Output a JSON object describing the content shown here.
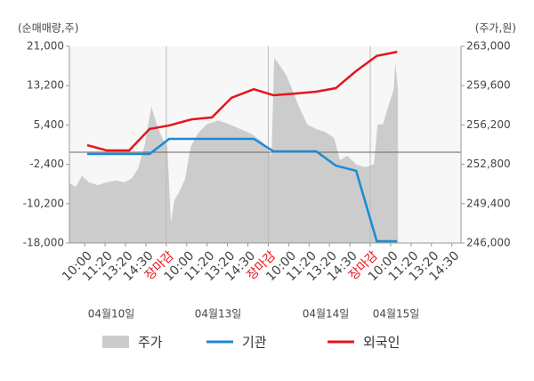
{
  "chart_data": {
    "type": "combo",
    "y_label": "(순매매량,주)",
    "y2_label": "(주가,원)",
    "xlim": [
      -0.75,
      18.45
    ],
    "xticks": [
      {
        "value": 0,
        "label": "10:00"
      },
      {
        "value": 1,
        "label": "11:20"
      },
      {
        "value": 2,
        "label": "13:20"
      },
      {
        "value": 3,
        "label": "14:30"
      },
      {
        "value": 4,
        "label": "장마감",
        "color": "#e8141a"
      },
      {
        "value": 5,
        "label": "10:00"
      },
      {
        "value": 6,
        "label": "11:20"
      },
      {
        "value": 7,
        "label": "13:20"
      },
      {
        "value": 8,
        "label": "14:30"
      },
      {
        "value": 9,
        "label": "장마감",
        "color": "#e8141a"
      },
      {
        "value": 10,
        "label": "10:00"
      },
      {
        "value": 11,
        "label": "11:20"
      },
      {
        "value": 12,
        "label": "13:20"
      },
      {
        "value": 13,
        "label": "14:30"
      },
      {
        "value": 14,
        "label": "장마감",
        "color": "#e8141a"
      },
      {
        "value": 15,
        "label": "10:00"
      },
      {
        "value": 16,
        "label": "11:20"
      },
      {
        "value": 17,
        "label": "13:20"
      },
      {
        "value": 18,
        "label": "14:30"
      }
    ],
    "date_labels": [
      "04월10일",
      "04월13일",
      "04월14일",
      "04월15일"
    ],
    "ylim": [
      -18000,
      21000
    ],
    "yticks": [
      {
        "value": 21000,
        "label": "21,000"
      },
      {
        "value": 13200,
        "label": "13,200"
      },
      {
        "value": 5400,
        "label": "5,400"
      },
      {
        "value": -2400,
        "label": "-2,400"
      },
      {
        "value": -10200,
        "label": "-10,200"
      },
      {
        "value": -18000,
        "label": "-18,000"
      }
    ],
    "y2lim": [
      246000,
      263000
    ],
    "y2ticks": [
      {
        "value": 263000,
        "label": "263,000"
      },
      {
        "value": 259600,
        "label": "259,600"
      },
      {
        "value": 256200,
        "label": "256,200"
      },
      {
        "value": 252800,
        "label": "252,800"
      },
      {
        "value": 249400,
        "label": "249,400"
      },
      {
        "value": 246000,
        "label": "246,000"
      }
    ],
    "zero_line": true,
    "series": [
      {
        "name": "주가",
        "type": "area",
        "axis": "y2",
        "color": "#cccccc",
        "x": [
          -0.75,
          -0.44,
          -0.14,
          0.21,
          0.65,
          1.08,
          1.52,
          1.96,
          2.31,
          2.61,
          2.92,
          3.27,
          3.53,
          3.79,
          4.05,
          4.23,
          4.4,
          4.66,
          4.93,
          5.19,
          5.54,
          5.97,
          6.54,
          7.11,
          7.63,
          8.16,
          8.73,
          9.16,
          9.29,
          9.6,
          9.9,
          10.25,
          10.6,
          10.91,
          11.35,
          11.78,
          12.22,
          12.52,
          12.87,
          13.31,
          13.75,
          14.18,
          14.36,
          14.62,
          14.88,
          15.15,
          15.23,
          15.36
        ],
        "values": [
          251200,
          250850,
          251800,
          251250,
          251000,
          251250,
          251400,
          251250,
          251600,
          252400,
          254300,
          257800,
          256250,
          255100,
          254300,
          247800,
          249700,
          250500,
          251600,
          254300,
          255450,
          256250,
          256600,
          256250,
          255850,
          255450,
          254700,
          253550,
          262000,
          261250,
          260450,
          258900,
          257400,
          256250,
          255850,
          255600,
          255100,
          253150,
          253550,
          252800,
          252550,
          252800,
          256250,
          256250,
          257800,
          259300,
          261600,
          259300
        ]
      },
      {
        "name": "기관",
        "type": "line",
        "color": "#1a8ad4",
        "x": [
          0.12,
          3.18,
          4.14,
          8.29,
          9.25,
          11.35,
          12.31,
          13.31,
          14.32,
          15.32
        ],
        "values": [
          -350,
          -350,
          2650,
          2650,
          180,
          180,
          -2650,
          -3700,
          -17650,
          -17650
        ]
      },
      {
        "name": "외국인",
        "type": "line",
        "color": "#e8141a",
        "x": [
          0.12,
          1.08,
          2.18,
          3.18,
          4.14,
          5.23,
          6.24,
          7.2,
          8.29,
          9.25,
          10.25,
          11.35,
          12.31,
          13.31,
          14.32,
          15.32
        ],
        "values": [
          1400,
          350,
          350,
          4600,
          5300,
          6500,
          6900,
          10800,
          12500,
          11300,
          11600,
          12000,
          12700,
          16100,
          19100,
          19900
        ]
      }
    ]
  }
}
